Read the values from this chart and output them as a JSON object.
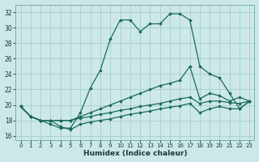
{
  "xlabel": "Humidex (Indice chaleur)",
  "xlim": [
    -0.5,
    23.5
  ],
  "ylim": [
    15.5,
    33.0
  ],
  "xticks": [
    0,
    1,
    2,
    3,
    4,
    5,
    6,
    7,
    8,
    9,
    10,
    11,
    12,
    13,
    14,
    15,
    16,
    17,
    18,
    19,
    20,
    21,
    22,
    23
  ],
  "yticks": [
    16,
    18,
    20,
    22,
    24,
    26,
    28,
    30,
    32
  ],
  "bg_color": "#cde8e8",
  "grid_color": "#9fc8c8",
  "line_color": "#1a6b5a",
  "curves": [
    [
      19.8,
      18.5,
      18.0,
      17.5,
      17.0,
      17.0,
      19.0,
      22.2,
      24.5,
      28.5,
      31.0,
      31.0,
      29.5,
      30.5,
      30.5,
      31.8,
      31.8,
      31.0,
      25.0,
      24.0,
      23.5,
      21.5,
      19.5,
      20.5
    ],
    [
      19.8,
      18.5,
      18.0,
      18.0,
      18.0,
      18.0,
      18.5,
      19.0,
      19.5,
      20.0,
      20.5,
      21.0,
      21.5,
      22.0,
      22.5,
      22.8,
      23.2,
      25.0,
      20.8,
      21.5,
      21.2,
      20.5,
      21.0,
      20.5
    ],
    [
      19.8,
      18.5,
      18.0,
      18.0,
      18.0,
      18.0,
      18.3,
      18.5,
      18.8,
      19.0,
      19.3,
      19.5,
      19.8,
      20.0,
      20.2,
      20.5,
      20.8,
      21.0,
      20.2,
      20.5,
      20.5,
      20.3,
      20.2,
      20.5
    ],
    [
      19.8,
      18.5,
      18.0,
      18.0,
      17.2,
      16.8,
      17.5,
      17.8,
      18.0,
      18.2,
      18.5,
      18.8,
      19.0,
      19.2,
      19.5,
      19.7,
      19.9,
      20.2,
      19.0,
      19.5,
      19.8,
      19.5,
      19.5,
      20.5
    ]
  ]
}
